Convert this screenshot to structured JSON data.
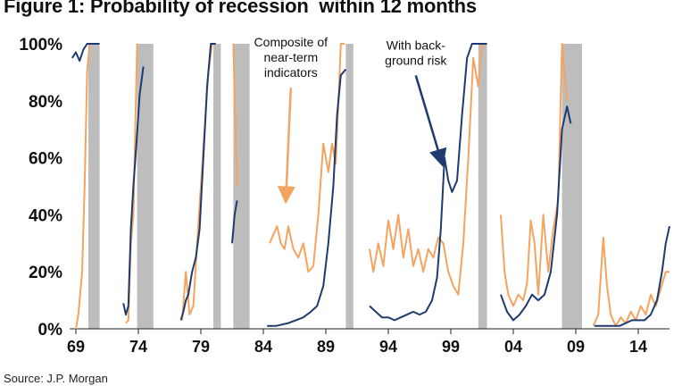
{
  "chart_data": {
    "type": "line",
    "title": "Figure 1: Probability of recession  within 12 months",
    "source": "Source: J.P. Morgan",
    "xlabel": "",
    "ylabel": "",
    "xlim": [
      1968.5,
      2016.5
    ],
    "ylim": [
      0,
      100
    ],
    "x_ticks": [
      1969,
      1974,
      1979,
      1984,
      1989,
      1994,
      1999,
      2004,
      2009,
      2014
    ],
    "x_tick_labels": [
      "69",
      "74",
      "79",
      "84",
      "89",
      "94",
      "99",
      "04",
      "09",
      "14"
    ],
    "y_ticks": [
      0,
      20,
      40,
      60,
      80,
      100
    ],
    "y_tick_labels": [
      "0%",
      "20%",
      "40%",
      "60%",
      "80%",
      "100%"
    ],
    "recessions": [
      [
        1970.0,
        1970.9
      ],
      [
        1973.9,
        1975.2
      ],
      [
        1980.0,
        1980.6
      ],
      [
        1981.6,
        1982.9
      ],
      [
        1990.6,
        1991.2
      ],
      [
        2001.2,
        2001.9
      ],
      [
        2007.9,
        2009.5
      ]
    ],
    "series": [
      {
        "name": "",
        "color": "#1f3a6e",
        "segments": [
          [
            [
              1968.7,
              95
            ],
            [
              1969.0,
              97
            ],
            [
              1969.3,
              94
            ],
            [
              1969.6,
              98
            ],
            [
              1969.9,
              100
            ],
            [
              1970.9,
              100
            ]
          ],
          [
            [
              1972.8,
              9
            ],
            [
              1973.0,
              5
            ],
            [
              1973.2,
              8
            ],
            [
              1973.4,
              35
            ],
            [
              1973.6,
              50
            ],
            [
              1973.8,
              62
            ],
            [
              1974.1,
              82
            ],
            [
              1974.4,
              92
            ]
          ],
          [
            [
              1977.4,
              3
            ],
            [
              1977.6,
              6
            ],
            [
              1977.8,
              10
            ],
            [
              1978.0,
              12
            ],
            [
              1978.3,
              20
            ],
            [
              1978.6,
              25
            ],
            [
              1978.9,
              35
            ],
            [
              1979.2,
              60
            ],
            [
              1979.5,
              85
            ],
            [
              1979.8,
              100
            ],
            [
              1980.2,
              100
            ]
          ],
          [
            [
              1981.5,
              30
            ],
            [
              1981.7,
              40
            ],
            [
              1981.9,
              45
            ]
          ],
          [
            [
              1984.3,
              1
            ],
            [
              1985.0,
              1
            ],
            [
              1986.0,
              2
            ],
            [
              1986.6,
              3
            ],
            [
              1987.2,
              4
            ],
            [
              1987.8,
              6
            ],
            [
              1988.3,
              8
            ],
            [
              1988.8,
              15
            ],
            [
              1989.2,
              30
            ],
            [
              1989.6,
              50
            ],
            [
              1989.9,
              75
            ],
            [
              1990.2,
              89
            ],
            [
              1990.6,
              91
            ]
          ],
          [
            [
              1992.5,
              8
            ],
            [
              1993.0,
              6
            ],
            [
              1993.5,
              4
            ],
            [
              1994.0,
              4
            ],
            [
              1994.5,
              3
            ],
            [
              1995.0,
              4
            ],
            [
              1995.5,
              5
            ],
            [
              1996.0,
              6
            ],
            [
              1996.5,
              5
            ],
            [
              1997.0,
              6
            ],
            [
              1997.5,
              10
            ],
            [
              1997.9,
              18
            ],
            [
              1998.2,
              35
            ],
            [
              1998.5,
              60
            ],
            [
              1998.8,
              52
            ],
            [
              1999.1,
              48
            ],
            [
              1999.5,
              52
            ],
            [
              1999.9,
              75
            ],
            [
              2000.3,
              95
            ],
            [
              2000.7,
              100
            ],
            [
              2001.9,
              100
            ]
          ],
          [
            [
              2003.0,
              12
            ],
            [
              2003.5,
              6
            ],
            [
              2004.0,
              3
            ],
            [
              2004.5,
              5
            ],
            [
              2005.0,
              8
            ],
            [
              2005.5,
              12
            ],
            [
              2006.0,
              10
            ],
            [
              2006.5,
              12
            ],
            [
              2007.0,
              20
            ],
            [
              2007.5,
              40
            ],
            [
              2007.9,
              70
            ],
            [
              2008.3,
              78
            ],
            [
              2008.6,
              72
            ]
          ],
          [
            [
              2010.5,
              1
            ],
            [
              2011.0,
              1
            ],
            [
              2011.5,
              1
            ],
            [
              2012.0,
              1
            ],
            [
              2012.5,
              1
            ],
            [
              2013.0,
              2
            ],
            [
              2013.5,
              3
            ],
            [
              2014.0,
              3
            ],
            [
              2014.5,
              3
            ],
            [
              2015.0,
              5
            ],
            [
              2015.5,
              10
            ],
            [
              2015.9,
              20
            ],
            [
              2016.2,
              30
            ],
            [
              2016.5,
              36
            ]
          ]
        ]
      },
      {
        "name": "",
        "color": "#f4a460",
        "segments": [
          [
            [
              1969.0,
              0
            ],
            [
              1969.2,
              5
            ],
            [
              1969.5,
              20
            ],
            [
              1969.7,
              50
            ],
            [
              1969.9,
              90
            ],
            [
              1970.1,
              100
            ]
          ],
          [
            [
              1973.0,
              2
            ],
            [
              1973.2,
              3
            ],
            [
              1973.4,
              30
            ],
            [
              1973.6,
              40
            ],
            [
              1973.9,
              100
            ]
          ],
          [
            [
              1977.5,
              3
            ],
            [
              1977.8,
              20
            ],
            [
              1978.1,
              5
            ],
            [
              1978.4,
              8
            ],
            [
              1978.7,
              30
            ],
            [
              1979.0,
              50
            ],
            [
              1979.3,
              70
            ],
            [
              1979.6,
              90
            ],
            [
              1979.9,
              100
            ]
          ],
          [
            [
              1981.6,
              100
            ],
            [
              1981.9,
              50
            ]
          ],
          [
            [
              1984.5,
              30
            ],
            [
              1984.8,
              33
            ],
            [
              1985.1,
              36
            ],
            [
              1985.4,
              30
            ],
            [
              1985.7,
              28
            ],
            [
              1986.0,
              36
            ],
            [
              1986.4,
              28
            ],
            [
              1986.8,
              25
            ],
            [
              1987.2,
              30
            ],
            [
              1987.6,
              20
            ],
            [
              1988.0,
              22
            ],
            [
              1988.4,
              40
            ],
            [
              1988.8,
              65
            ],
            [
              1989.2,
              55
            ],
            [
              1989.5,
              65
            ],
            [
              1989.8,
              58
            ],
            [
              1990.2,
              100
            ],
            [
              1990.5,
              100
            ]
          ],
          [
            [
              1992.5,
              28
            ],
            [
              1992.8,
              20
            ],
            [
              1993.2,
              30
            ],
            [
              1993.6,
              22
            ],
            [
              1994.0,
              38
            ],
            [
              1994.4,
              28
            ],
            [
              1994.8,
              40
            ],
            [
              1995.2,
              25
            ],
            [
              1995.6,
              35
            ],
            [
              1996.0,
              22
            ],
            [
              1996.4,
              28
            ],
            [
              1996.8,
              20
            ],
            [
              1997.2,
              28
            ],
            [
              1997.6,
              25
            ],
            [
              1998.0,
              32
            ],
            [
              1998.4,
              30
            ],
            [
              1998.8,
              20
            ],
            [
              1999.2,
              15
            ],
            [
              1999.6,
              12
            ],
            [
              2000.0,
              30
            ],
            [
              2000.4,
              60
            ],
            [
              2000.8,
              95
            ],
            [
              2001.2,
              85
            ],
            [
              2001.5,
              100
            ]
          ],
          [
            [
              2003.0,
              40
            ],
            [
              2003.3,
              20
            ],
            [
              2003.6,
              12
            ],
            [
              2004.0,
              8
            ],
            [
              2004.4,
              12
            ],
            [
              2004.8,
              10
            ],
            [
              2005.1,
              16
            ],
            [
              2005.4,
              38
            ],
            [
              2005.7,
              30
            ],
            [
              2006.0,
              12
            ],
            [
              2006.4,
              40
            ],
            [
              2006.8,
              20
            ],
            [
              2007.2,
              35
            ],
            [
              2007.6,
              45
            ],
            [
              2007.9,
              100
            ],
            [
              2008.3,
              80
            ]
          ],
          [
            [
              2010.4,
              1
            ],
            [
              2010.8,
              5
            ],
            [
              2011.2,
              32
            ],
            [
              2011.5,
              15
            ],
            [
              2011.8,
              5
            ],
            [
              2012.2,
              1
            ],
            [
              2012.6,
              4
            ],
            [
              2013.0,
              2
            ],
            [
              2013.4,
              6
            ],
            [
              2013.8,
              3
            ],
            [
              2014.2,
              8
            ],
            [
              2014.6,
              5
            ],
            [
              2015.0,
              12
            ],
            [
              2015.4,
              8
            ],
            [
              2015.8,
              14
            ],
            [
              2016.2,
              20
            ],
            [
              2016.5,
              20
            ]
          ]
        ]
      }
    ],
    "annotations": [
      {
        "lines": [
          "Composite of",
          "near-term",
          "indicators"
        ],
        "x": 1986.2,
        "y": 99,
        "arrow_to": [
          1985.8,
          45
        ],
        "arrow_color": "#f4a460"
      },
      {
        "lines": [
          "With back-",
          "ground risk"
        ],
        "x": 1996.2,
        "y": 98,
        "arrow_to": [
          1998.3,
          58
        ],
        "arrow_color": "#1f3a6e"
      }
    ]
  }
}
